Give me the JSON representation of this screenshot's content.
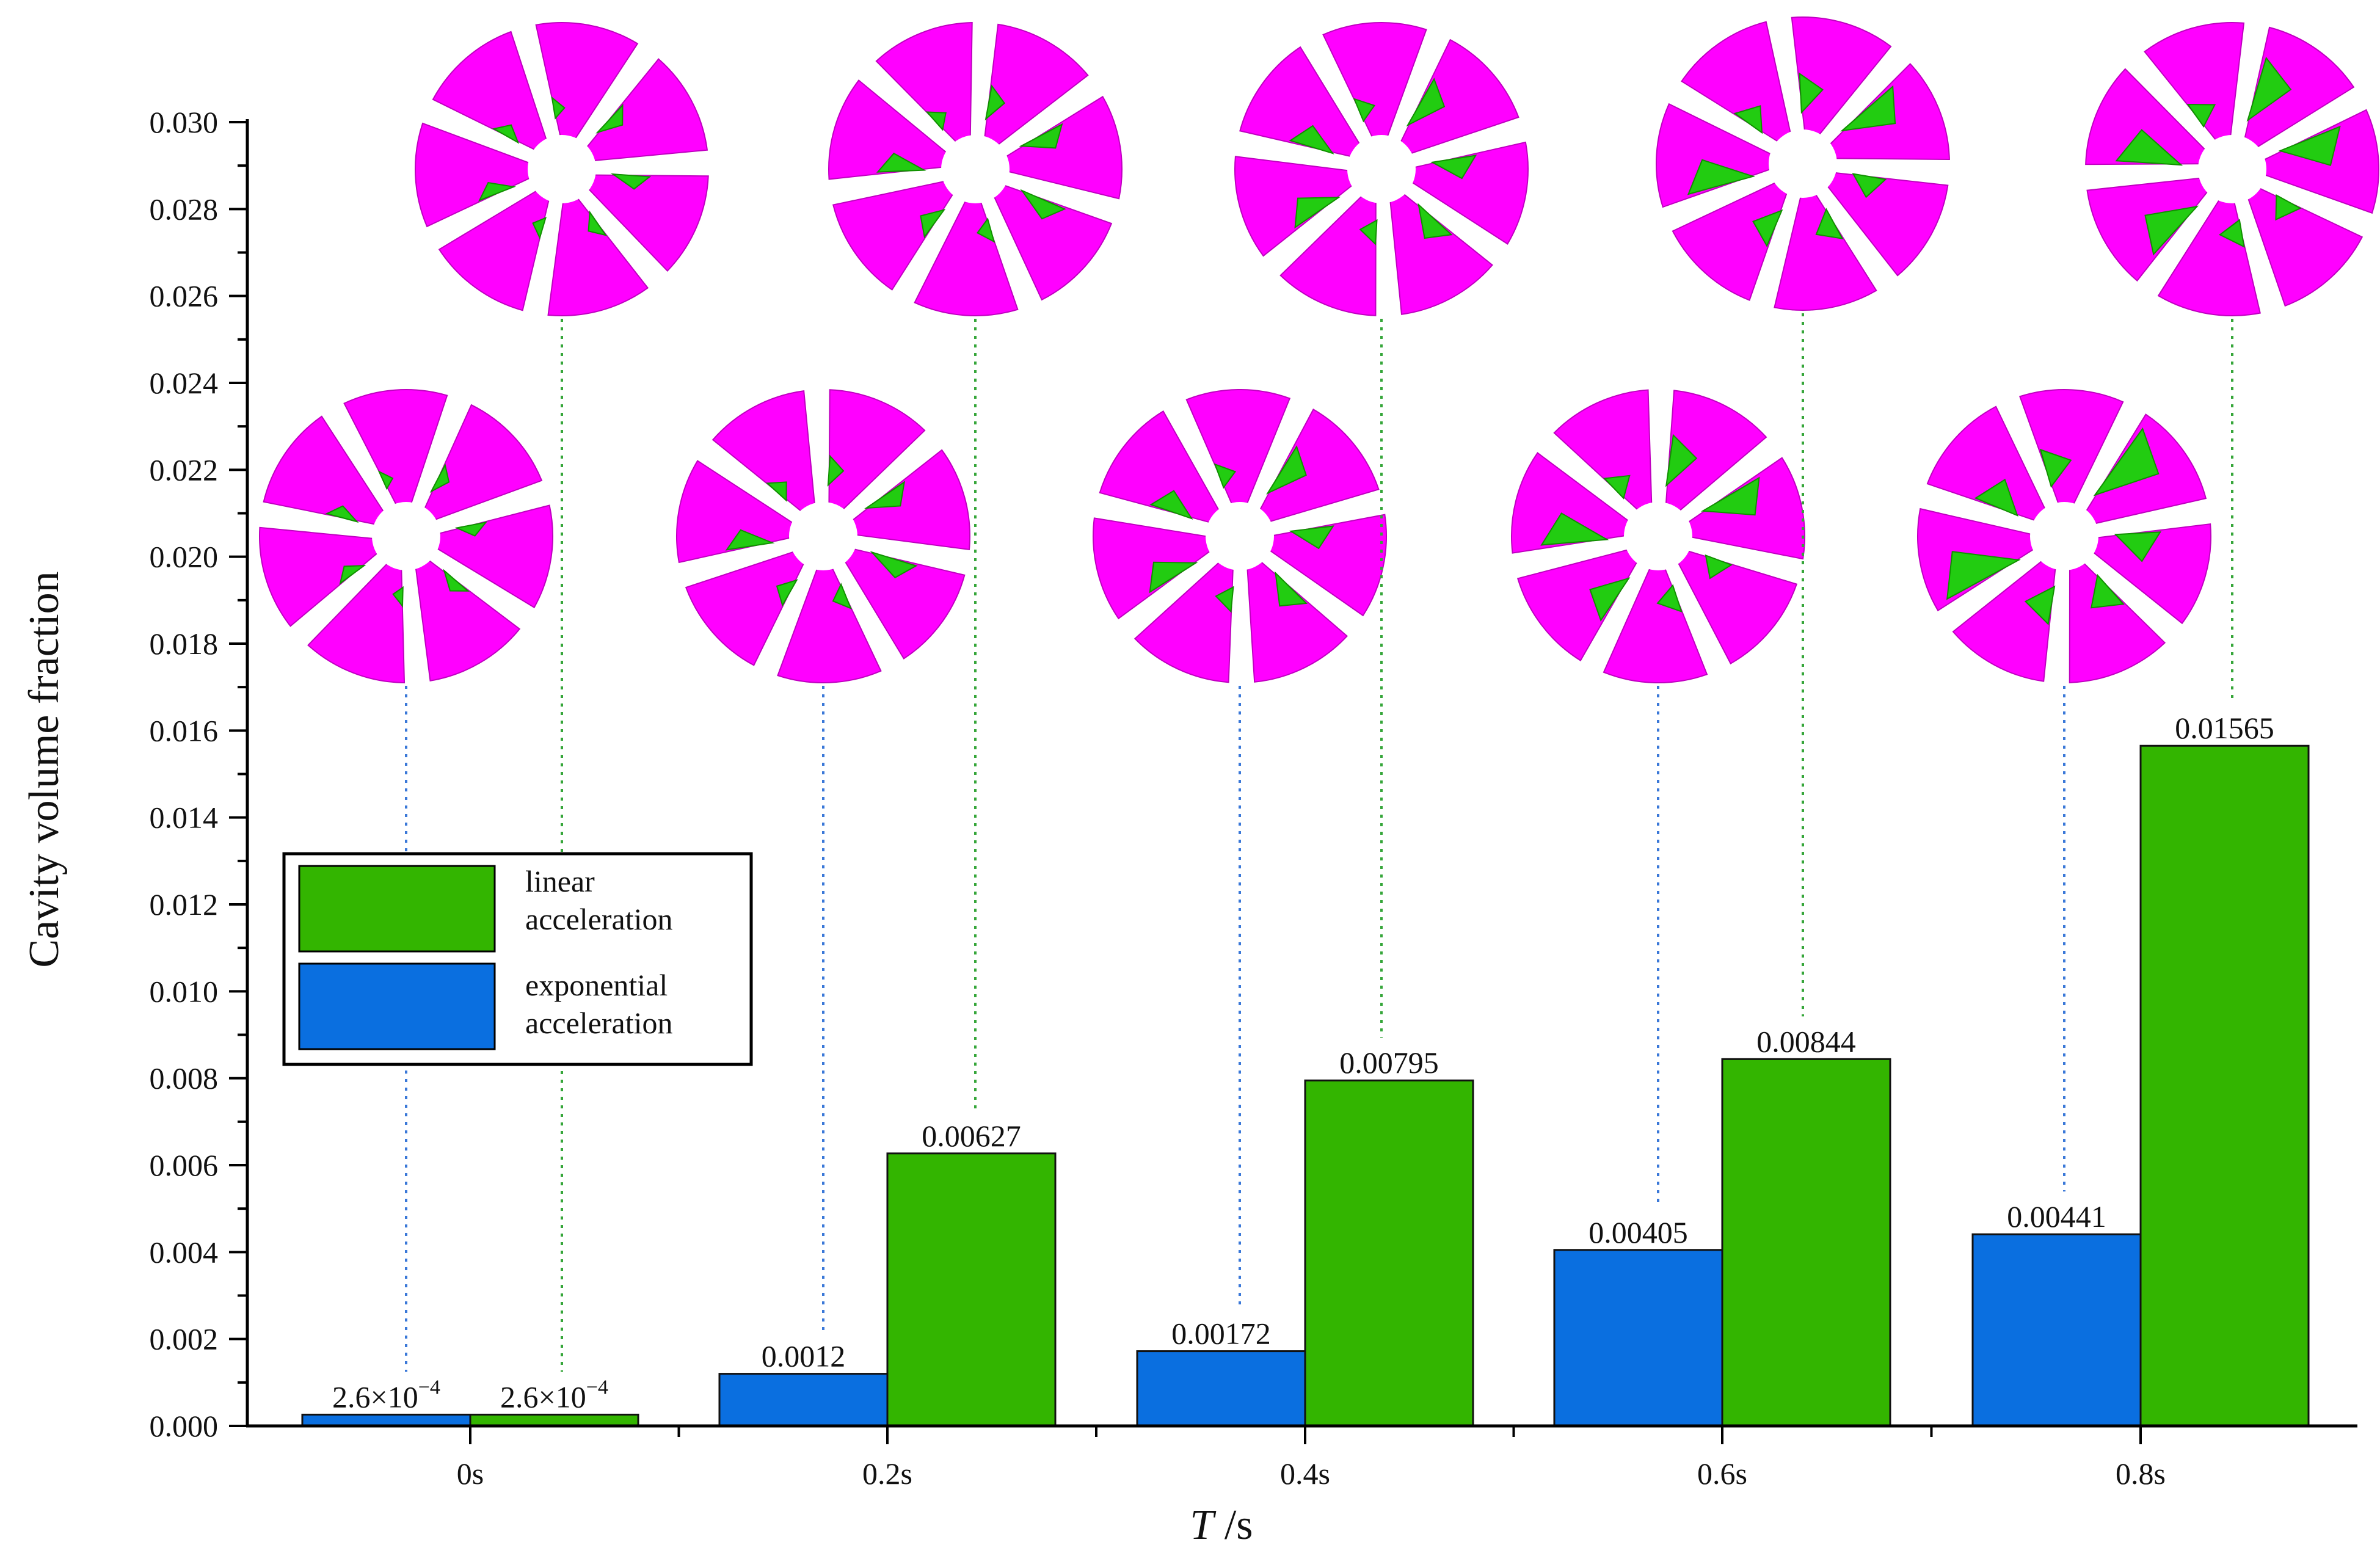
{
  "chart_data": {
    "type": "bar",
    "title": "",
    "xlabel": {
      "italic": "T",
      "rest": " /s"
    },
    "ylabel": "Cavity volume fraction",
    "categories": [
      "0s",
      "0.2s",
      "0.4s",
      "0.6s",
      "0.8s"
    ],
    "ylim": [
      0,
      0.03
    ],
    "yticks": [
      "0.000",
      "0.002",
      "0.004",
      "0.006",
      "0.008",
      "0.010",
      "0.012",
      "0.014",
      "0.016",
      "0.018",
      "0.020",
      "0.022",
      "0.024",
      "0.026",
      "0.028",
      "0.030"
    ],
    "grid": false,
    "legend_position": "left-middle",
    "series": [
      {
        "name": "exponential acceleration",
        "name_lines": [
          "exponential",
          "acceleration"
        ],
        "color": "#0a6fe0",
        "values": [
          0.00026,
          0.0012,
          0.00172,
          0.00405,
          0.00441
        ],
        "labels": [
          "2.6×10",
          "0.0012",
          "0.00172",
          "0.00405",
          "0.00441"
        ],
        "label_exponents": [
          "−4",
          "",
          "",
          "",
          ""
        ]
      },
      {
        "name": "linear acceleration",
        "name_lines": [
          "linear",
          "acceleration"
        ],
        "color": "#33b500",
        "values": [
          0.00026,
          0.00627,
          0.00795,
          0.00844,
          0.01565
        ],
        "labels": [
          "2.6×10",
          "0.00627",
          "0.00795",
          "0.00844",
          "0.01565"
        ],
        "label_exponents": [
          "−4",
          "",
          "",
          "",
          ""
        ]
      }
    ],
    "annotations": "cavitation propeller images above each bar, connected by dotted leader lines",
    "propeller_colors": {
      "blade": "#ff00ff",
      "cavity": "#22cc11"
    }
  }
}
